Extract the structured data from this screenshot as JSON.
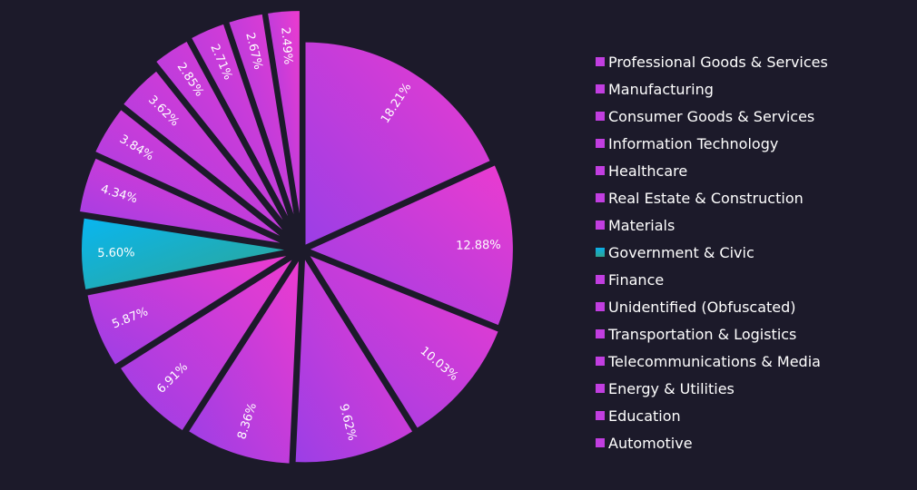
{
  "chart_data": {
    "type": "pie",
    "categories": [
      "Professional Goods & Services",
      "Manufacturing",
      "Consumer Goods & Services",
      "Information Technology",
      "Healthcare",
      "Real Estate & Construction",
      "Materials",
      "Government & Civic",
      "Finance",
      "Unidentified (Obfuscated)",
      "Transportation & Logistics",
      "Telecommunications & Media",
      "Energy & Utilities",
      "Education",
      "Automotive"
    ],
    "values": [
      18.21,
      12.88,
      10.03,
      9.62,
      8.36,
      6.91,
      5.87,
      5.6,
      4.34,
      3.84,
      3.62,
      2.85,
      2.71,
      2.67,
      2.49
    ],
    "labels": [
      "18.21%",
      "12.88%",
      "10.03%",
      "9.62%",
      "8.36%",
      "6.91%",
      "5.87%",
      "5.60%",
      "4.34%",
      "3.84%",
      "3.62%",
      "2.85%",
      "2.71%",
      "2.67%",
      "2.49%"
    ],
    "highlighted": "Government & Civic",
    "legend_position": "right",
    "colors": {
      "background": "#1c1a2a",
      "slice_gradient_start": "#ec3bcf",
      "slice_gradient_end": "#9b3ee6",
      "highlight_gradient_start": "#09b6f0",
      "highlight_gradient_end": "#2fa590",
      "legend_swatch": "#c13ee0",
      "legend_swatch_highlight_top": "#0aaeea",
      "legend_swatch_highlight_bottom": "#2fa590",
      "text": "#ffffff"
    }
  }
}
